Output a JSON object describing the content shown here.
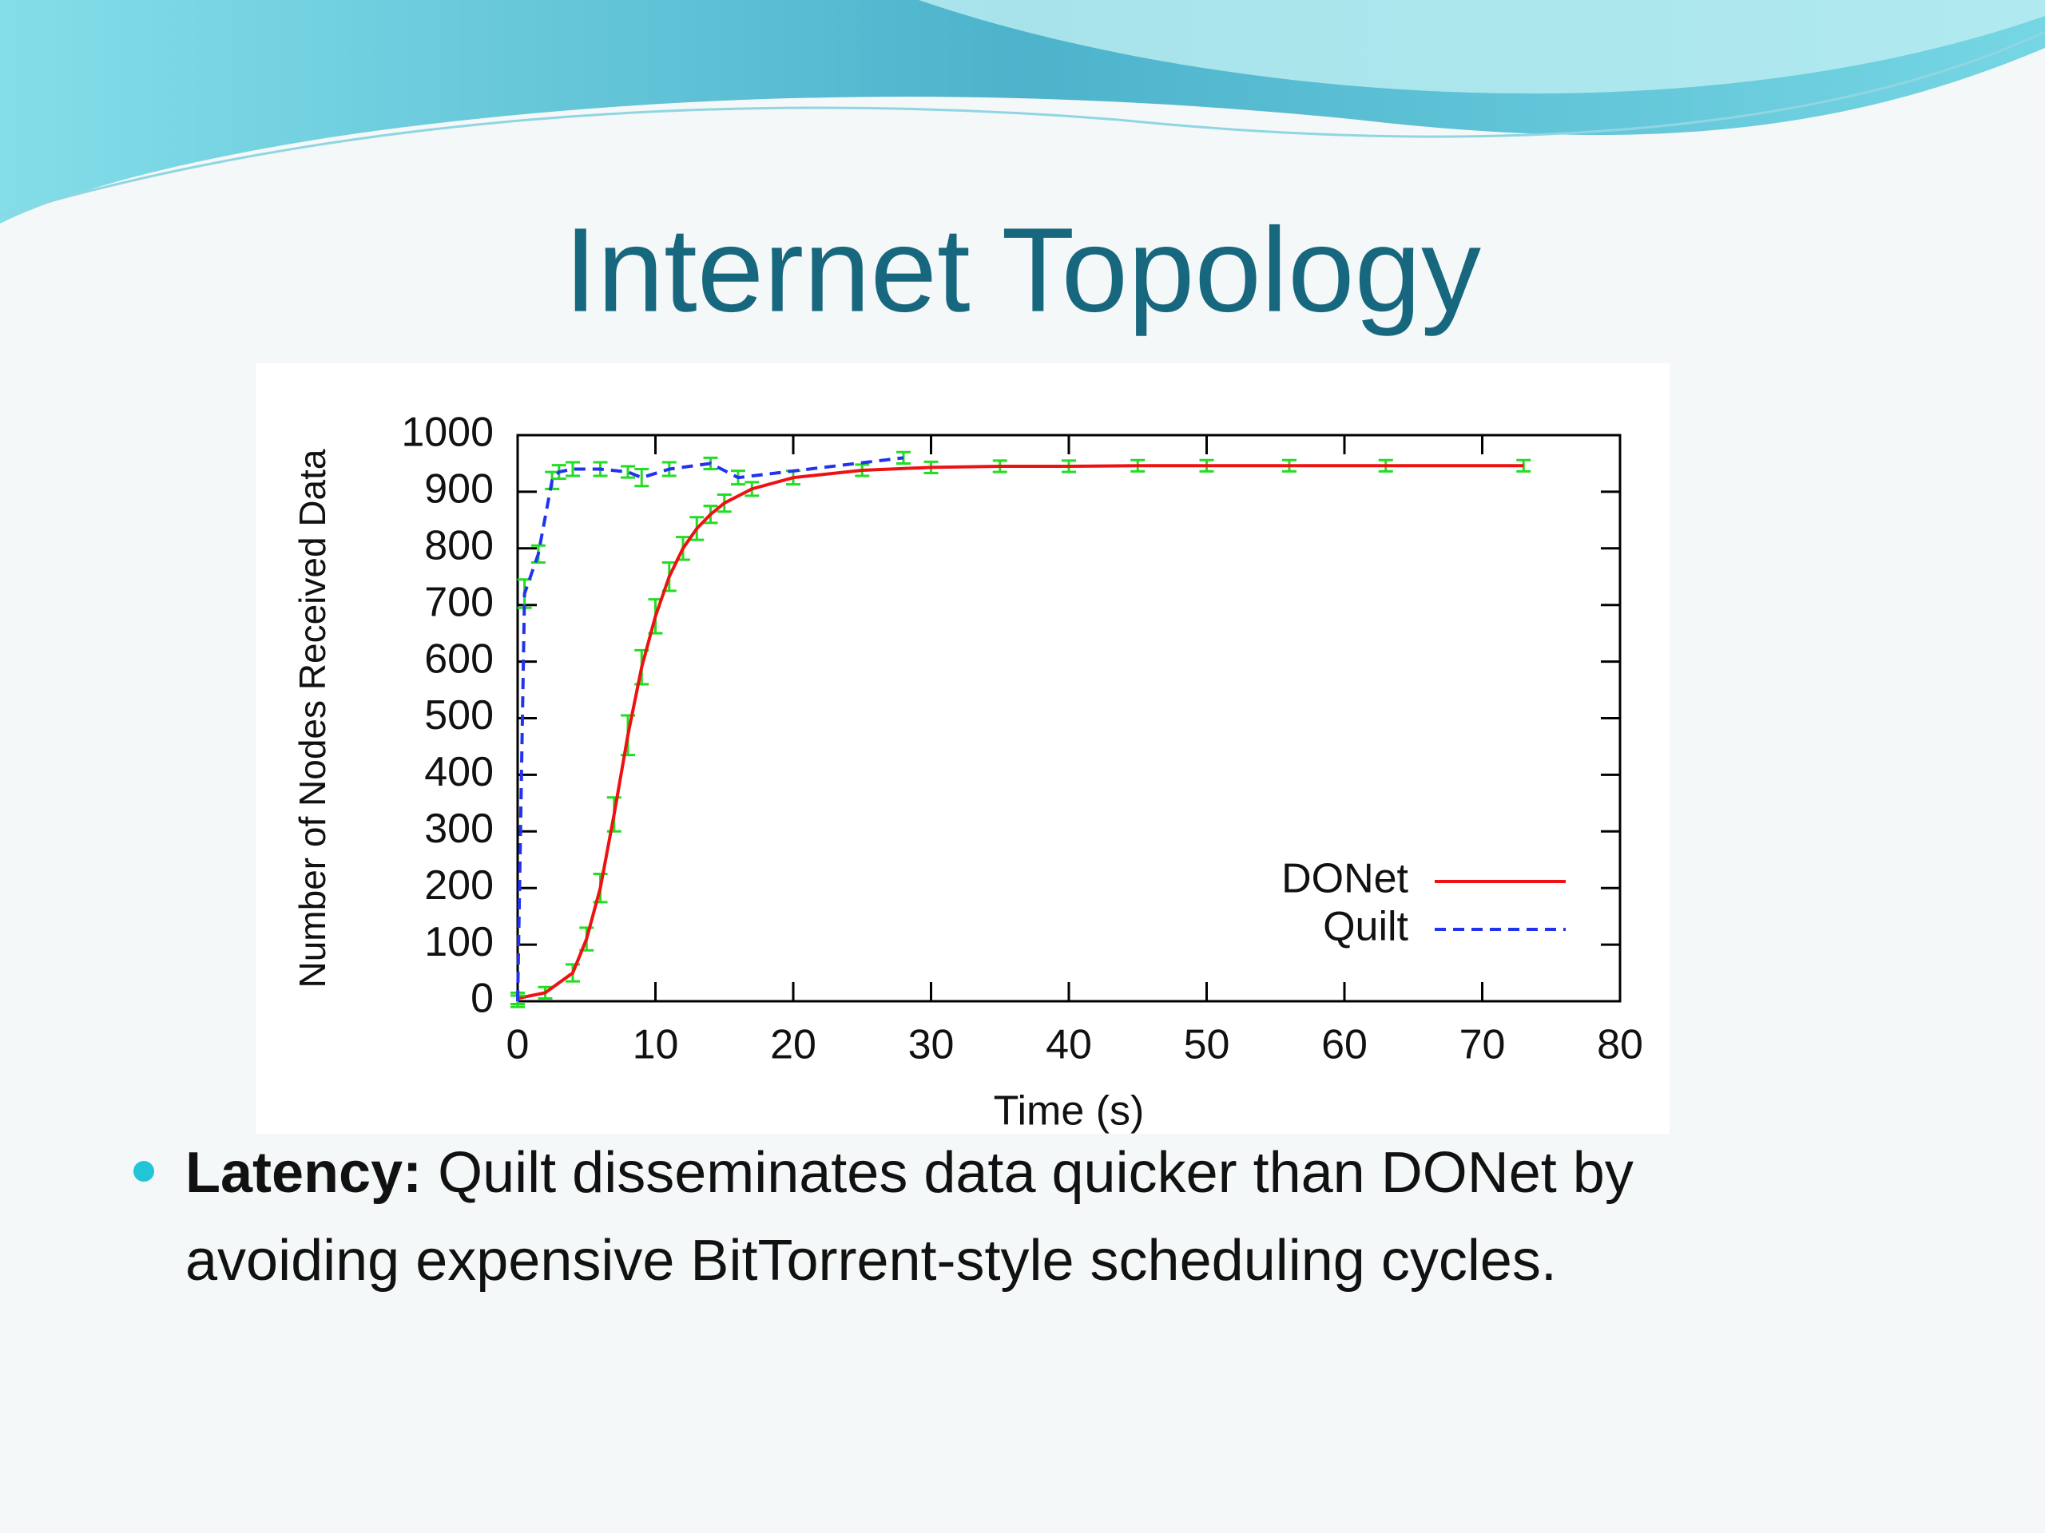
{
  "slide": {
    "title": "Internet Topology",
    "bullet": {
      "label": "Latency:",
      "lines": [
        "Quilt disseminates data quicker than DONet by",
        "avoiding expensive BitTorrent-style scheduling cycles."
      ]
    }
  },
  "chart_data": {
    "type": "line",
    "x_label": "Time (s)",
    "y_label": "Number of Nodes Received Data",
    "xlim": [
      0,
      80
    ],
    "ylim": [
      0,
      1000
    ],
    "xticks": [
      0,
      10,
      20,
      30,
      40,
      50,
      60,
      70,
      80
    ],
    "yticks": [
      0,
      100,
      200,
      300,
      400,
      500,
      600,
      700,
      800,
      900,
      1000
    ],
    "legend": "lower right",
    "error_color": "#22dd22",
    "series": [
      {
        "name": "DONet",
        "color": "#ee1111",
        "line_style": "solid",
        "x": [
          0,
          2,
          4,
          5,
          6,
          7,
          8,
          9,
          10,
          11,
          12,
          13,
          14,
          15,
          17,
          20,
          25,
          30,
          35,
          40,
          45,
          50,
          56,
          63,
          73
        ],
        "values": [
          5,
          15,
          50,
          110,
          200,
          330,
          470,
          590,
          680,
          750,
          800,
          835,
          860,
          880,
          905,
          925,
          938,
          943,
          945,
          945,
          946,
          946,
          946,
          946,
          946
        ],
        "errors": [
          10,
          10,
          15,
          20,
          25,
          30,
          35,
          30,
          30,
          25,
          20,
          20,
          15,
          15,
          12,
          12,
          10,
          10,
          10,
          10,
          10,
          10,
          10,
          10,
          10
        ]
      },
      {
        "name": "Quilt",
        "color": "#2233ee",
        "line_style": "dashed",
        "x": [
          0,
          0.5,
          1.5,
          2.5,
          3,
          4,
          6,
          8,
          9,
          11,
          14,
          16,
          28
        ],
        "values": [
          0,
          720,
          790,
          920,
          935,
          940,
          940,
          935,
          925,
          940,
          950,
          925,
          960
        ],
        "errors": [
          10,
          25,
          15,
          15,
          12,
          12,
          12,
          10,
          15,
          12,
          10,
          12,
          10
        ]
      }
    ]
  }
}
